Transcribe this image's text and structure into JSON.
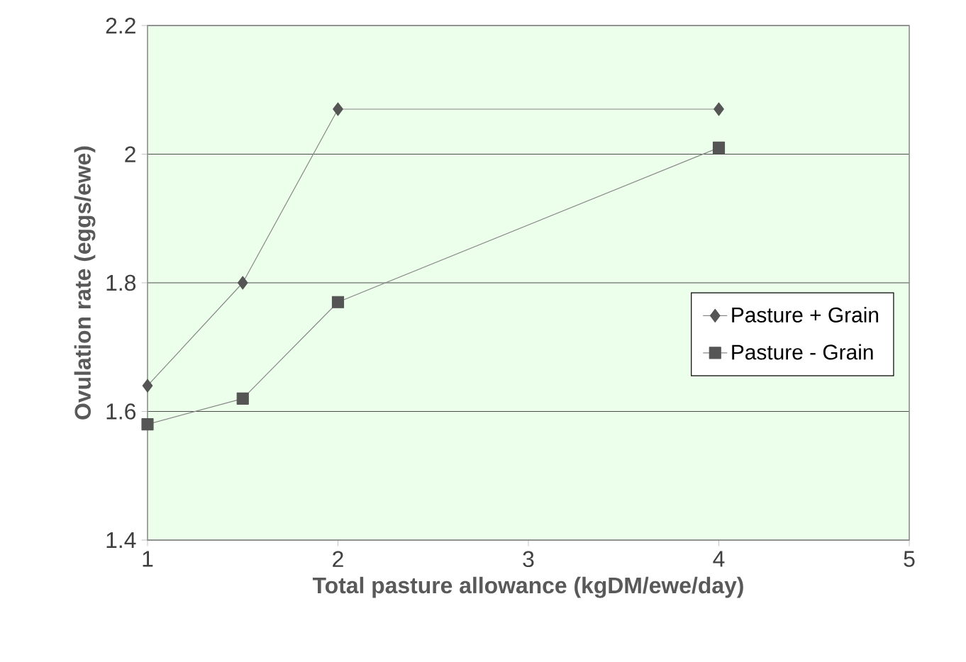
{
  "chart_data": {
    "type": "line",
    "xlabel": "Total pasture allowance (kgDM/ewe/day)",
    "ylabel": "Ovulation rate (eggs/ewe)",
    "xlim": [
      1,
      5
    ],
    "xticks": [
      1,
      2,
      3,
      4,
      5
    ],
    "ylim": [
      1.4,
      2.2
    ],
    "yticks": [
      1.4,
      1.6,
      1.8,
      2,
      2.2
    ],
    "grid": "y",
    "legend": "right",
    "line_style": "solid",
    "series": [
      {
        "name": "Pasture + Grain",
        "color": "#555555",
        "marker": "diamond",
        "x": [
          1,
          1.5,
          2,
          4
        ],
        "values": [
          1.64,
          1.8,
          2.07,
          2.07
        ]
      },
      {
        "name": "Pasture - Grain",
        "color": "#555555",
        "marker": "square",
        "x": [
          1,
          1.5,
          2,
          4
        ],
        "values": [
          1.58,
          1.62,
          1.77,
          2.01
        ]
      }
    ]
  }
}
